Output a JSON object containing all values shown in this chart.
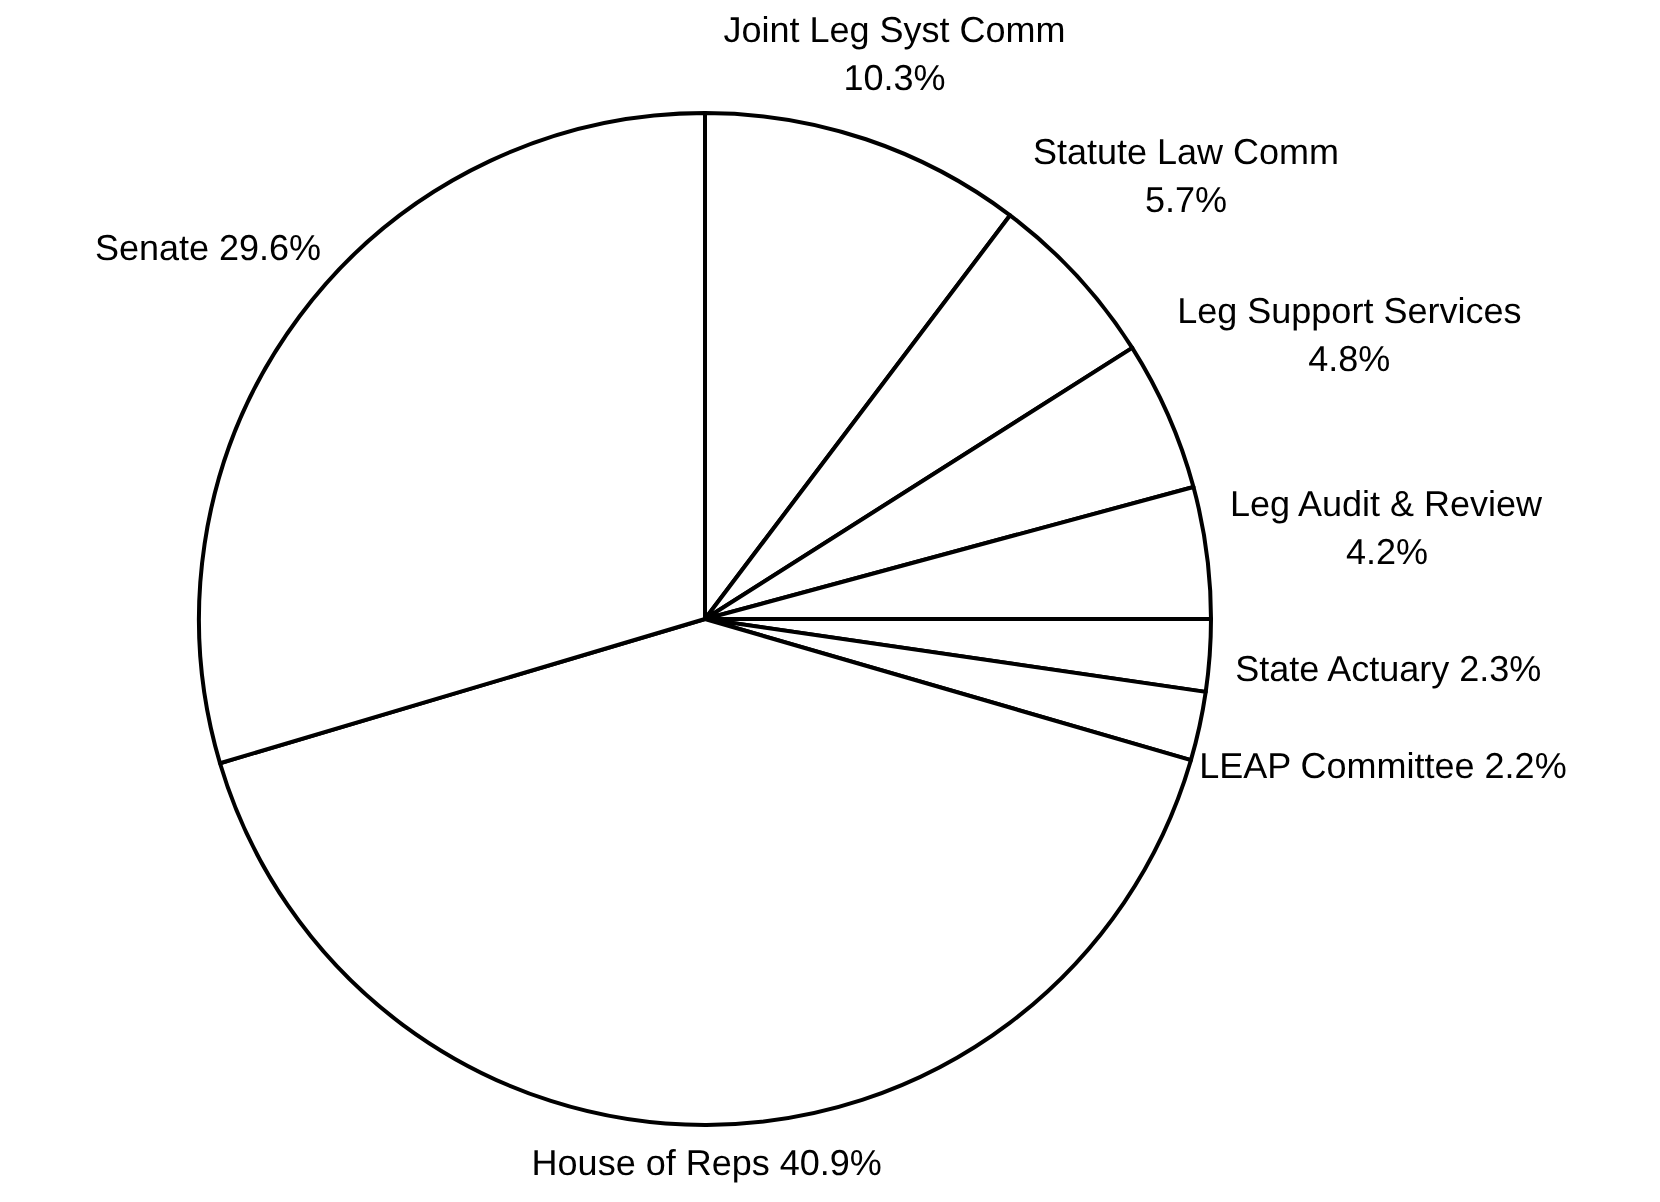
{
  "chart_data": {
    "type": "pie",
    "categories": [
      "Joint Leg Syst Comm",
      "Statute Law Comm",
      "Leg Support Services",
      "Leg Audit & Review",
      "State Actuary",
      "LEAP Committee",
      "House of Reps",
      "Senate"
    ],
    "values": [
      10.3,
      5.7,
      4.8,
      4.2,
      2.3,
      2.2,
      40.9,
      29.6
    ],
    "colors": [
      "#ffffff",
      "#ffffff",
      "#ffffff",
      "#ffffff",
      "#ffffff",
      "#ffffff",
      "#ffffff",
      "#ffffff"
    ],
    "value_labels": [
      "10.3%",
      "5.7%",
      "4.8%",
      "4.2%",
      "2.3%",
      "2.2%",
      "40.9%",
      "29.6%"
    ]
  }
}
